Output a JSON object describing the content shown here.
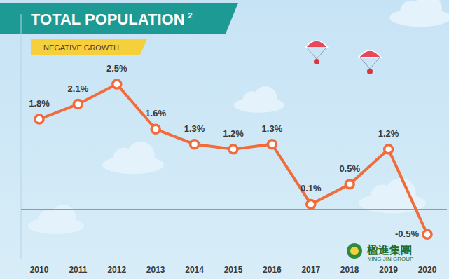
{
  "chart_data": {
    "type": "line",
    "title": "TOTAL POPULATION",
    "subtitle": "NEGATIVE GROWTH",
    "annotations": [
      "2",
      "楹進集團",
      "YING JIN GROUP"
    ],
    "categories": [
      "2010",
      "2011",
      "2012",
      "2013",
      "2014",
      "2015",
      "2016",
      "2017",
      "2018",
      "2019",
      "2020"
    ],
    "values": [
      1.8,
      2.1,
      2.5,
      1.6,
      1.3,
      1.2,
      1.3,
      0.1,
      0.5,
      1.2,
      -0.5
    ],
    "value_labels": [
      "1.8%",
      "2.1%",
      "2.5%",
      "1.6%",
      "1.3%",
      "1.2%",
      "1.3%",
      "0.1%",
      "0.5%",
      "1.2%",
      "-0.5%"
    ],
    "color": "#f26b3a",
    "marker": "circle",
    "data_labels": true,
    "ylim": [
      -1,
      3.9
    ],
    "yticks": [
      0
    ],
    "grid": true,
    "tick_labels": "x"
  }
}
